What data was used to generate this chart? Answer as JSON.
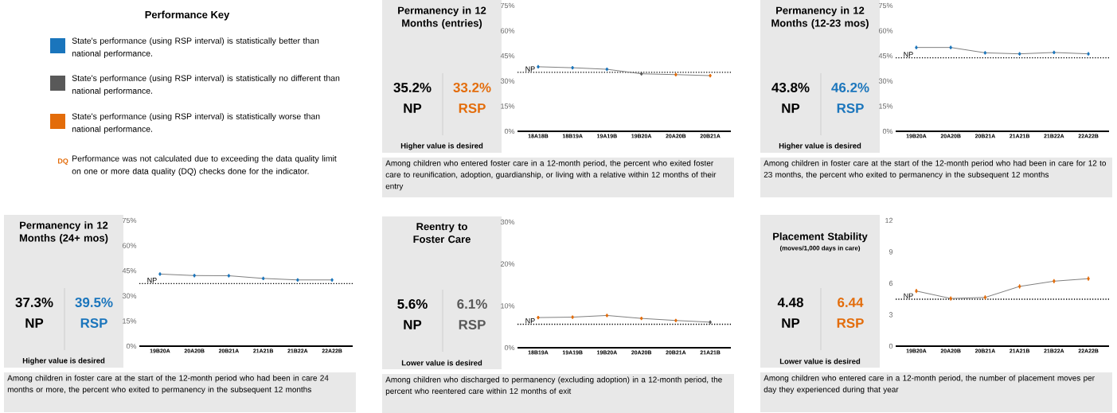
{
  "chart_data": [
    {
      "type": "other",
      "title": "Performance Key",
      "colors": [
        "#1a75bc",
        "#595959",
        "#e36c0a"
      ],
      "annotations": [
        "State's performance (using RSP interval) is statistically better than national performance.",
        "State's performance (using RSP interval) is statistically no different than national performance.",
        "State's performance (using RSP interval) is statistically worse than national performance.",
        "DQ",
        "Performance was not calculated due to exceeding the data quality limit on one or more data quality (DQ) checks done for the indicator."
      ]
    },
    {
      "type": "line",
      "title": "Permanency in 12 Months (entries)",
      "categories": [
        "18A18B",
        "18B19A",
        "19A19B",
        "19B20A",
        "20A20B",
        "20B21A"
      ],
      "marker": "circle",
      "series": [
        {
          "color": "#7f7f7f",
          "values": [
            38.5,
            37.9,
            37.0,
            34.3,
            33.8,
            33.2
          ],
          "errors": [
            1,
            1,
            1,
            1,
            1,
            1
          ],
          "colors": [
            "#1a75bc",
            "#1a75bc",
            "#1a75bc",
            "#595959",
            "#e36c0a",
            "#e36c0a"
          ]
        }
      ],
      "ylim": [
        0,
        75
      ],
      "yticks": [
        {
          "value": 0,
          "label": "0%"
        },
        {
          "value": 15,
          "label": "15%"
        },
        {
          "value": 30,
          "label": "30%"
        },
        {
          "value": 45,
          "label": "45%"
        },
        {
          "value": 60,
          "label": "60%"
        },
        {
          "value": 75,
          "label": "75%"
        }
      ],
      "ref_lines": [
        {
          "axis": "y",
          "value": 35.2,
          "label": "NP",
          "line_style": "dotted"
        }
      ],
      "annotations": [
        "35.2%",
        "NP",
        "33.2%",
        "RSP",
        "Higher value is desired",
        "Among children who entered foster care in a 12-month period, the percent who exited foster care to reunification, adoption, guardianship, or living with a relative within 12 months of their entry"
      ]
    },
    {
      "type": "line",
      "title": "Permanency in 12 Months (12-23 mos)",
      "categories": [
        "19B20A",
        "20A20B",
        "20B21A",
        "21A21B",
        "21B22A",
        "22A22B"
      ],
      "marker": "circle",
      "series": [
        {
          "color": "#7f7f7f",
          "values": [
            50.0,
            50.0,
            46.8,
            46.2,
            47.0,
            46.2
          ],
          "errors": [
            1,
            1,
            1,
            1,
            1,
            1
          ],
          "colors": [
            "#1a75bc",
            "#1a75bc",
            "#1a75bc",
            "#1a75bc",
            "#1a75bc",
            "#1a75bc"
          ]
        }
      ],
      "ylim": [
        0,
        75
      ],
      "yticks": [
        {
          "value": 0,
          "label": "0%"
        },
        {
          "value": 15,
          "label": "15%"
        },
        {
          "value": 30,
          "label": "30%"
        },
        {
          "value": 45,
          "label": "45%"
        },
        {
          "value": 60,
          "label": "60%"
        },
        {
          "value": 75,
          "label": "75%"
        }
      ],
      "ref_lines": [
        {
          "axis": "y",
          "value": 43.8,
          "label": "NP",
          "line_style": "dotted"
        }
      ],
      "annotations": [
        "43.8%",
        "NP",
        "46.2%",
        "RSP",
        "Higher value is desired",
        "Among children in foster care at the start of the 12-month period who had been in care for 12 to 23 months, the percent who exited to permanency in the subsequent 12 months"
      ]
    },
    {
      "type": "line",
      "title": "Permanency in 12 Months (24+ mos)",
      "categories": [
        "19B20A",
        "20A20B",
        "20B21A",
        "21A21B",
        "21B22A",
        "22A22B"
      ],
      "marker": "circle",
      "series": [
        {
          "color": "#7f7f7f",
          "values": [
            43.0,
            42.1,
            42.0,
            40.4,
            39.5,
            39.5
          ],
          "errors": [
            1,
            1,
            1,
            1,
            1,
            1
          ],
          "colors": [
            "#1a75bc",
            "#1a75bc",
            "#1a75bc",
            "#1a75bc",
            "#1a75bc",
            "#1a75bc"
          ]
        }
      ],
      "ylim": [
        0,
        75
      ],
      "yticks": [
        {
          "value": 0,
          "label": "0%"
        },
        {
          "value": 15,
          "label": "15%"
        },
        {
          "value": 30,
          "label": "30%"
        },
        {
          "value": 45,
          "label": "45%"
        },
        {
          "value": 60,
          "label": "60%"
        },
        {
          "value": 75,
          "label": "75%"
        }
      ],
      "ref_lines": [
        {
          "axis": "y",
          "value": 37.3,
          "label": "NP",
          "line_style": "dotted"
        }
      ],
      "annotations": [
        "37.3%",
        "NP",
        "39.5%",
        "RSP",
        "Higher value is desired",
        "Among children in foster care at the start of the 12-month period who had been in care 24 months or more, the percent who exited to permanency in the subsequent 12 months"
      ]
    },
    {
      "type": "line",
      "title": "Reentry to Foster Care",
      "categories": [
        "18B19A",
        "19A19B",
        "19B20A",
        "20A20B",
        "20B21A",
        "21A21B"
      ],
      "marker": "circle",
      "series": [
        {
          "color": "#7f7f7f",
          "values": [
            7.2,
            7.3,
            7.7,
            7.0,
            6.5,
            6.1
          ],
          "errors": [
            0.4,
            0.4,
            0.4,
            0.4,
            0.4,
            0.4
          ],
          "colors": [
            "#e36c0a",
            "#e36c0a",
            "#e36c0a",
            "#e36c0a",
            "#e36c0a",
            "#595959"
          ]
        }
      ],
      "ylim": [
        0,
        30
      ],
      "yticks": [
        {
          "value": 0,
          "label": "0%"
        },
        {
          "value": 10,
          "label": "10%"
        },
        {
          "value": 20,
          "label": "20%"
        },
        {
          "value": 30,
          "label": "30%"
        }
      ],
      "ref_lines": [
        {
          "axis": "y",
          "value": 5.6,
          "label": "NP",
          "line_style": "dotted"
        }
      ],
      "annotations": [
        "5.6%",
        "NP",
        "6.1%",
        "RSP",
        "Lower value is desired",
        "Among children who discharged to permanency (excluding adoption) in a 12-month period, the percent who reentered care within 12 months of exit"
      ]
    },
    {
      "type": "line",
      "title": "Placement Stability",
      "subtitle": "(moves/1,000 days in care)",
      "categories": [
        "19B20A",
        "20A20B",
        "20B21A",
        "21A21B",
        "21B22A",
        "22A22B"
      ],
      "marker": "circle",
      "series": [
        {
          "color": "#7f7f7f",
          "values": [
            5.26,
            4.55,
            4.65,
            5.7,
            6.2,
            6.44
          ],
          "errors": [
            0.2,
            0.2,
            0.2,
            0.2,
            0.2,
            0.2
          ],
          "colors": [
            "#e36c0a",
            "#e36c0a",
            "#e36c0a",
            "#e36c0a",
            "#e36c0a",
            "#e36c0a"
          ]
        }
      ],
      "ylim": [
        0,
        12
      ],
      "yticks": [
        0,
        3,
        6,
        9,
        12
      ],
      "ref_lines": [
        {
          "axis": "y",
          "value": 4.48,
          "label": "NP",
          "line_style": "dotted"
        }
      ],
      "annotations": [
        "4.48",
        "NP",
        "6.44",
        "RSP",
        "Lower value is desired",
        "Among children who entered care in a 12-month period, the number of placement moves per day they experienced during that year"
      ]
    }
  ]
}
